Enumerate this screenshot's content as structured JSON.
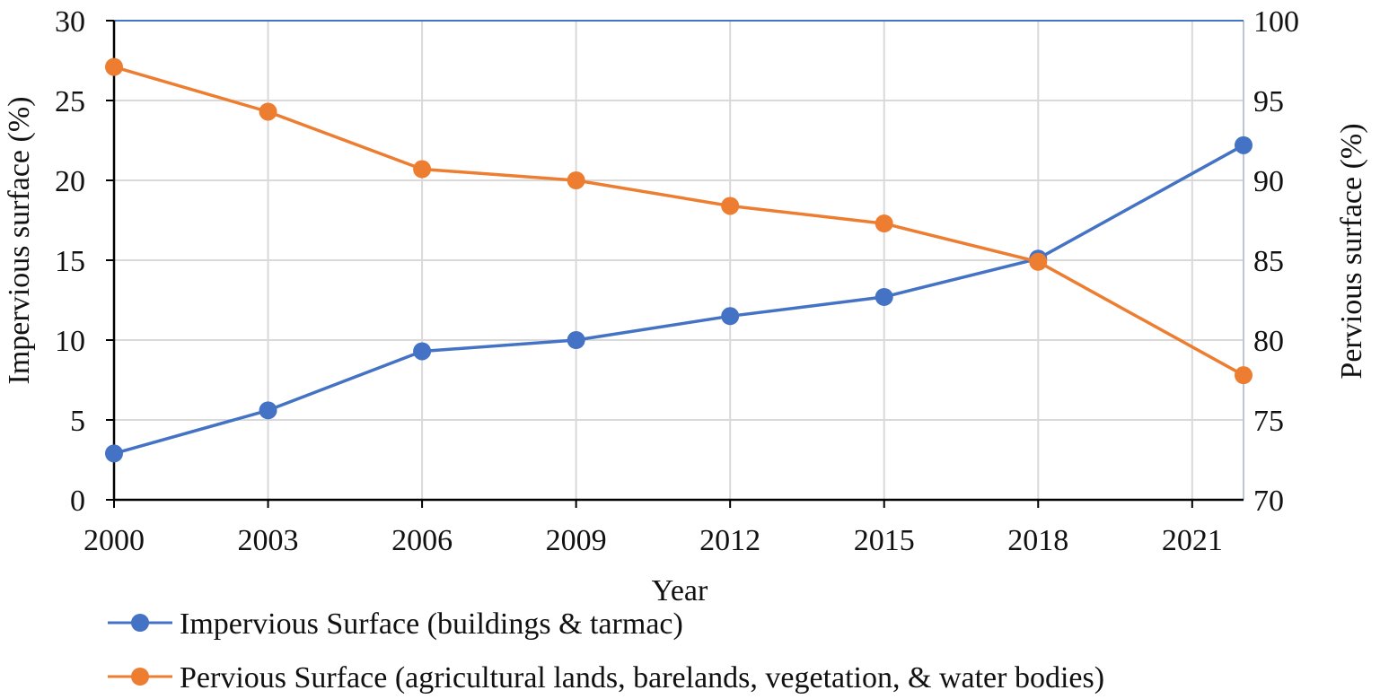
{
  "chart_data": {
    "type": "line",
    "title": "",
    "xlabel": "Year",
    "ylabel": "Impervious surface (%)",
    "y2label": "Pervious surface (%)",
    "xlim": [
      2000,
      2022
    ],
    "ylim": [
      0,
      30
    ],
    "y2lim": [
      70,
      100
    ],
    "x_ticks": [
      2000,
      2003,
      2006,
      2009,
      2012,
      2015,
      2018,
      2021
    ],
    "y_ticks": [
      0,
      5,
      10,
      15,
      20,
      25,
      30
    ],
    "y2_ticks": [
      70,
      75,
      80,
      85,
      90,
      95,
      100
    ],
    "grid": true,
    "legend_position": "bottom",
    "series": [
      {
        "name": "Impervious Surface (buildings & tarmac)",
        "axis": "left",
        "color": "#4472C4",
        "x": [
          2000,
          2003,
          2006,
          2009,
          2012,
          2015,
          2018,
          2022
        ],
        "values": [
          2.9,
          5.6,
          9.3,
          10.0,
          11.5,
          12.7,
          15.1,
          22.2
        ]
      },
      {
        "name": "Pervious Surface (agricultural lands, barelands, vegetation, & water bodies)",
        "axis": "right",
        "color": "#ED7D31",
        "x": [
          2000,
          2003,
          2006,
          2009,
          2012,
          2015,
          2018,
          2022
        ],
        "values": [
          97.1,
          94.3,
          90.7,
          90.0,
          88.4,
          87.3,
          84.9,
          77.8
        ]
      }
    ]
  }
}
